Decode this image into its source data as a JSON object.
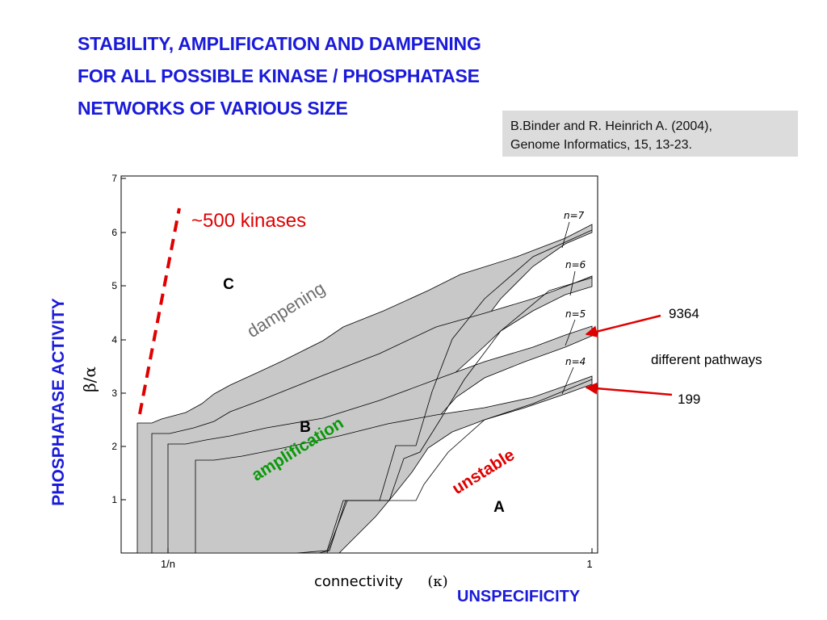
{
  "title_lines": [
    "STABILITY, AMPLIFICATION AND DAMPENING",
    "FOR ALL POSSIBLE KINASE / PHOSPHATASE",
    "NETWORKS OF VARIOUS SIZE"
  ],
  "reference_lines": [
    "B.Binder and  R. Heinrich A.  (2004),",
    "Genome Informatics, 15, 13-23."
  ],
  "y_axis_title": "PHOSPHATASE ACTIVITY",
  "x_axis_title": "UNSPECIFICITY",
  "plot": {
    "y_label": "β/α",
    "x_label": "connectivity",
    "x_symbol": "(κ)",
    "y_ticks": [
      "7",
      "6",
      "5",
      "4",
      "3",
      "2",
      "1"
    ],
    "x_ticks": [
      "1/n",
      "1"
    ],
    "n_labels": [
      "n=7",
      "n=6",
      "n=5",
      "n=4"
    ],
    "region_letters": [
      "C",
      "B",
      "A"
    ],
    "region_words": {
      "dampening": "dampening",
      "amplification": "amplification",
      "unstable": "unstable"
    },
    "colors": {
      "region_fill": "#c8c8c8",
      "dampening": "#6e6e6e",
      "amplification": "#0a9a0a",
      "unstable": "#e00000"
    }
  },
  "annotations": {
    "kinases": "~500 kinases",
    "count_top": "9364",
    "middle_text": "different pathways",
    "count_bottom": "199",
    "colors": {
      "kinases": "#e00000",
      "arrows": "#e00000"
    }
  }
}
